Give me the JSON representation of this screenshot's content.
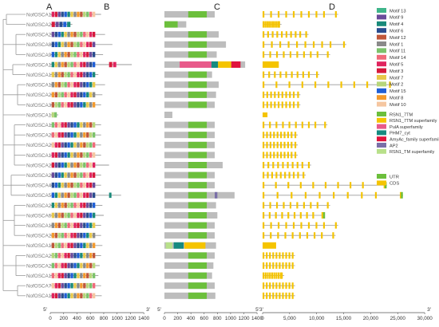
{
  "panel_labels": [
    "A",
    "B",
    "C",
    "D"
  ],
  "genes": [
    "NofOSCA14",
    "NofOSCA24",
    "NofOSCA27",
    "NofOSCA8",
    "NofOSCA9",
    "NofOSCA11",
    "NofOSCA15",
    "NofOSCA16",
    "NofOSCA26",
    "NofOSCA3",
    "NofOSCA1",
    "NofOSCA12",
    "NofOSCA25",
    "NofOSCA29",
    "NofOSCA17",
    "NofOSCA23",
    "NofOSCA20",
    "NofOSCA4",
    "NofOSCA5",
    "NofOSCA2",
    "NofOSCA6",
    "NofOSCA18",
    "NofOSCA28",
    "NofOSCA13",
    "NofOSCA22",
    "NofOSCA21",
    "NofOSCA19",
    "NofOSCA7",
    "NofOSCA10"
  ],
  "axis_B": {
    "start": "5'",
    "end": "3'",
    "ticks": [
      "0",
      "200",
      "400",
      "600",
      "800",
      "1000",
      "1200",
      "1400"
    ]
  },
  "axis_C": {
    "start": "5'",
    "end": "3'",
    "ticks": [
      "0",
      "200",
      "400",
      "600",
      "800",
      "1000",
      "1200",
      "1400"
    ]
  },
  "axis_D": {
    "start": "5'",
    "end": "3'",
    "ticks": [
      "0",
      "5,000",
      "10,000",
      "15,000",
      "20,000",
      "25,000",
      "30,000"
    ]
  },
  "legend_motifs": [
    {
      "label": "Motif 13",
      "color": "#3fb58a"
    },
    {
      "label": "Motif 9",
      "color": "#6a4b9a"
    },
    {
      "label": "Motif 4",
      "color": "#1a8a7a"
    },
    {
      "label": "Motif 6",
      "color": "#2a4d8f"
    },
    {
      "label": "Motif 12",
      "color": "#c0573a"
    },
    {
      "label": "Motif 1",
      "color": "#8a8a8a"
    },
    {
      "label": "Motif 11",
      "color": "#7cc26b"
    },
    {
      "label": "Motif 14",
      "color": "#f06a7a"
    },
    {
      "label": "Motif 5",
      "color": "#e0245e"
    },
    {
      "label": "Motif 3",
      "color": "#d61a3c"
    },
    {
      "label": "Motif 7",
      "color": "#e8c84a"
    },
    {
      "label": "Motif 2",
      "color": "#b7d67a"
    },
    {
      "label": "Motif 15",
      "color": "#1f5fd6"
    },
    {
      "label": "Motif 8",
      "color": "#f39a2e"
    },
    {
      "label": "Motif 10",
      "color": "#f5c6a0"
    }
  ],
  "legend_domains": [
    {
      "label": "RSN1_7TM",
      "color": "#6cbf3c"
    },
    {
      "label": "RSN1_7TM superfamily",
      "color": "#f5c400"
    },
    {
      "label": "PulA superfamily",
      "color": "#e85a8a"
    },
    {
      "label": "PHM7_cyt",
      "color": "#168a80"
    },
    {
      "label": "AmyAc_family superfamily",
      "color": "#e0143c"
    },
    {
      "label": "AP2",
      "color": "#7a6fa8"
    },
    {
      "label": "RSN1_TM superfamily",
      "color": "#b8e08a"
    }
  ],
  "legend_structure": [
    {
      "label": "UTR",
      "color": "#6cbf3c"
    },
    {
      "label": "CDS",
      "color": "#f5c400"
    }
  ],
  "colors": {
    "tree": "#9a9a9a",
    "gene_label": "#7a7a7a",
    "backbone": "#9a9a9a",
    "domain_bg": "#bdbdbd",
    "domain_main": "#6cbf3c",
    "exon": "#f5c400",
    "intron": "#9a9a9a"
  }
}
